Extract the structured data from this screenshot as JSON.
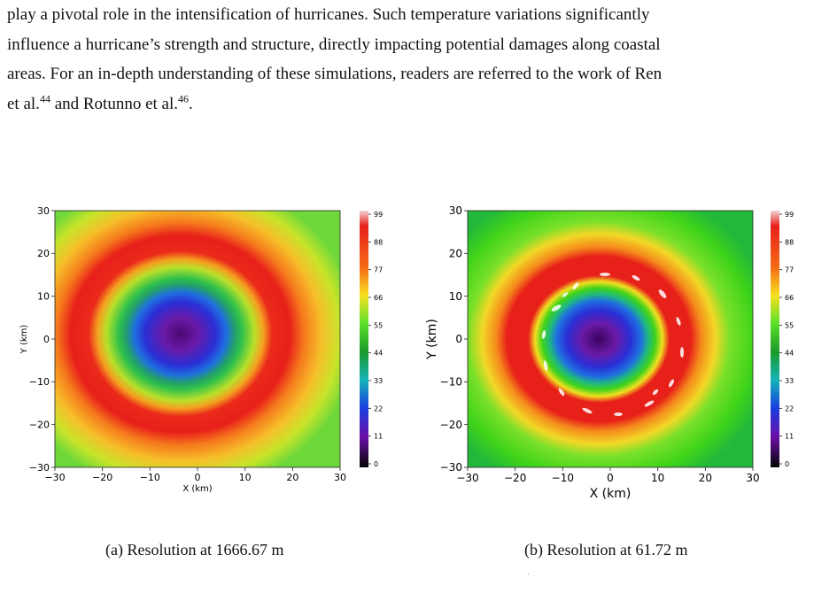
{
  "body_text": {
    "line1": "play a pivotal role in the intensification of hurricanes. Such temperature variations significantly",
    "line2": "influence a hurricane’s strength and structure, directly impacting potential damages along coastal",
    "line3": "areas. For an in-depth understanding of these simulations, readers are referred to the work of Ren",
    "line4_a": "et al.",
    "ref1": "44",
    "line4_b": " and Rotunno et al.",
    "ref2": "46",
    "line4_c": "."
  },
  "figures": [
    {
      "caption": "(a) Resolution at 1666.67 m",
      "xlabel": "X (km)",
      "ylabel": "Y (km)",
      "xticks": [
        "−30",
        "−20",
        "−10",
        "0",
        "10",
        "20",
        "30"
      ],
      "yticks": [
        "30",
        "20",
        "10",
        "0",
        "−10",
        "−20",
        "−30"
      ],
      "colorbar_ticks": [
        "99",
        "88",
        "77",
        "66",
        "55",
        "44",
        "33",
        "22",
        "11",
        "0"
      ]
    },
    {
      "caption": "(b) Resolution at 61.72 m",
      "xlabel": "X (km)",
      "ylabel": "Y (km)",
      "xticks": [
        "−30",
        "−20",
        "−10",
        "0",
        "10",
        "20",
        "30"
      ],
      "yticks": [
        "30",
        "20",
        "10",
        "0",
        "−10",
        "−20",
        "−30"
      ],
      "colorbar_ticks": [
        "99",
        "88",
        "77",
        "66",
        "55",
        "44",
        "33",
        "22",
        "11",
        "0"
      ]
    }
  ],
  "chart_data": [
    {
      "type": "heatmap",
      "xlabel": "X (km)",
      "ylabel": "Y (km)",
      "xlim": [
        -30,
        30
      ],
      "ylim": [
        -30,
        30
      ],
      "colorbar_range": [
        0,
        99
      ],
      "colorbar_ticks": [
        99,
        88,
        77,
        66,
        55,
        44,
        33,
        22,
        11,
        0
      ],
      "colors": {
        "center": "#5b0a8c",
        "inner": "#1f3ed8",
        "ring": "#e8201a",
        "outer": "#7adf3a"
      }
    },
    {
      "type": "heatmap",
      "xlabel": "X (km)",
      "ylabel": "Y (km)",
      "xlim": [
        -30,
        30
      ],
      "ylim": [
        -30,
        30
      ],
      "colorbar_range": [
        0,
        99
      ],
      "colorbar_ticks": [
        99,
        88,
        77,
        66,
        55,
        44,
        33,
        22,
        11,
        0
      ],
      "colors": {
        "center": "#5b0a8c",
        "inner": "#1f3ed8",
        "ring": "#e8201a",
        "outer": "#3fd31a"
      }
    }
  ]
}
